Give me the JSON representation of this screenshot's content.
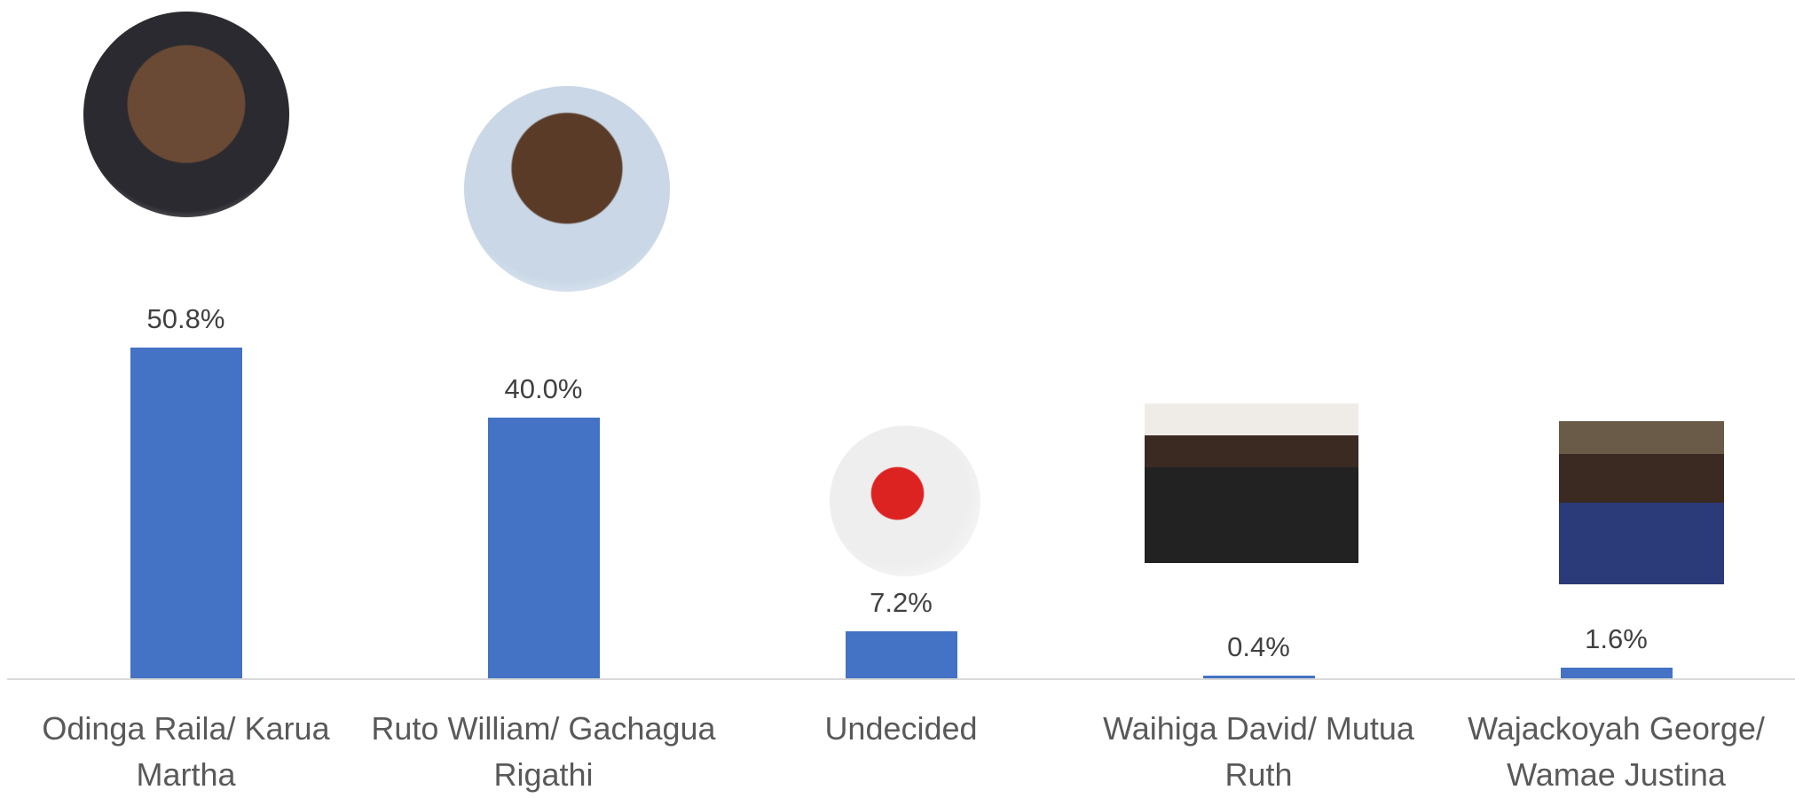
{
  "chart_data": {
    "type": "bar",
    "categories": [
      "Odinga Raila/ Karua Martha",
      "Ruto William/ Gachagua Rigathi",
      "Undecided",
      "Waihiga David/ Mutua Ruth",
      "Wajackoyah George/ Wamae Justina"
    ],
    "values": [
      50.8,
      40.0,
      7.2,
      0.4,
      1.6
    ],
    "value_labels": [
      "50.8%",
      "40.0%",
      "7.2%",
      "0.4%",
      "1.6%"
    ],
    "color": "#4472c4"
  }
}
